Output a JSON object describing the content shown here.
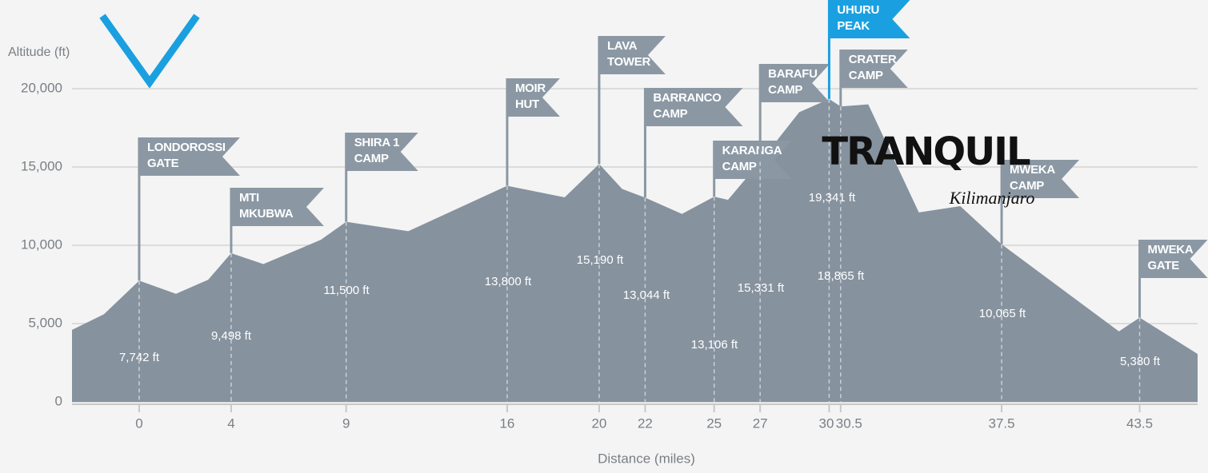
{
  "chart_data": {
    "type": "area",
    "y_label": "Altitude (ft)",
    "x_label": "Distance (miles)",
    "color": "#86929e",
    "grid": true,
    "xlim": [
      -2.92,
      46.02
    ],
    "ylim": [
      0,
      20000
    ],
    "yticks": [
      0,
      {
        "value": 5000,
        "label": "5,000"
      },
      {
        "value": 10000,
        "label": "10,000"
      },
      {
        "value": 15000,
        "label": "15,000"
      },
      {
        "value": 20000,
        "label": "20,000"
      }
    ],
    "xticks": [
      0,
      4,
      9,
      16,
      20,
      22,
      25,
      27,
      30,
      30.5,
      37.5,
      43.5
    ],
    "x": [
      -2.92,
      -1.53,
      0,
      1.6,
      3.0,
      4,
      5.4,
      7.9,
      9,
      11.7,
      16,
      18.5,
      20,
      21,
      22,
      23.6,
      25,
      25.6,
      27,
      28.7,
      30,
      30.5,
      31.7,
      33.9,
      35.7,
      37.5,
      42.6,
      43.5,
      46.02
    ],
    "values": [
      4600,
      5600,
      7742,
      6900,
      7800,
      9498,
      8800,
      10350,
      11500,
      10900,
      13800,
      13060,
      15190,
      13600,
      13044,
      12000,
      13106,
      12900,
      15331,
      18500,
      19341,
      18865,
      19000,
      12100,
      12500,
      10065,
      4500,
      5380,
      3060
    ],
    "waypoints": [
      {
        "name": [
          "LONDOROSSI",
          "GATE"
        ],
        "x": 0,
        "altitude": 7742,
        "altitude_label": "7,742 ft"
      },
      {
        "name": [
          "MTI",
          "MKUBWA"
        ],
        "x": 4,
        "altitude": 9498,
        "altitude_label": "9,498 ft"
      },
      {
        "name": [
          "SHIRA 1",
          "CAMP"
        ],
        "x": 9,
        "altitude": 11500,
        "altitude_label": "11,500 ft"
      },
      {
        "name": [
          "MOIR",
          "HUT"
        ],
        "x": 16,
        "altitude": 13800,
        "altitude_label": "13,800 ft"
      },
      {
        "name": [
          "LAVA",
          "TOWER"
        ],
        "x": 20,
        "altitude": 15190,
        "altitude_label": "15,190 ft"
      },
      {
        "name": [
          "BARRANCO",
          "CAMP"
        ],
        "x": 22,
        "altitude": 13044,
        "altitude_label": "13,044 ft"
      },
      {
        "name": [
          "KARANGA",
          "CAMP"
        ],
        "x": 25,
        "altitude": 13106,
        "altitude_label": "13,106 ft"
      },
      {
        "name": [
          "BARAFU",
          "CAMP"
        ],
        "x": 27,
        "altitude": 15331,
        "altitude_label": "15,331 ft"
      },
      {
        "name": [
          "UHURU",
          "PEAK"
        ],
        "x": 30,
        "altitude": 19341,
        "altitude_label": "19,341 ft"
      },
      {
        "name": [
          "CRATER",
          "CAMP"
        ],
        "x": 30.5,
        "altitude": 18865,
        "altitude_label": "18,865 ft"
      },
      {
        "name": [
          "MWEKA",
          "CAMP"
        ],
        "x": 37.5,
        "altitude": 10065,
        "altitude_label": "10,065 ft"
      },
      {
        "name": [
          "MWEKA",
          "GATE"
        ],
        "x": 43.5,
        "altitude": 5380,
        "altitude_label": "5,380 ft"
      }
    ],
    "logo": {
      "text": "TRANQUIL",
      "subtext": "Kilimanjaro"
    }
  }
}
